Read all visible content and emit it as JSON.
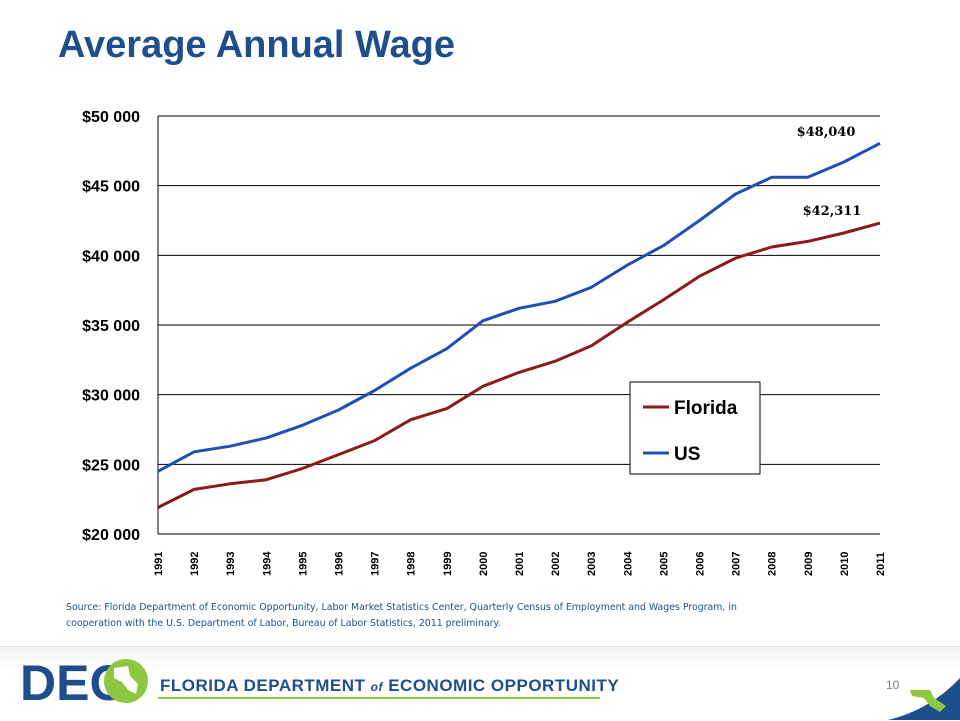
{
  "slide": {
    "title": "Average Annual Wage",
    "source": "Source:  Florida Department of Economic Opportunity,  Labor Market Statistics Center, Quarterly Census of Employment and Wages Program, in cooperation with the U.S. Department of Labor, Bureau of Labor Statistics, 2011 preliminary.",
    "page_number": "10"
  },
  "footer": {
    "logo_text": "DEO",
    "agency_name_before": "FLORIDA DEPARTMENT ",
    "agency_name_of": "of",
    "agency_name_after": " ECONOMIC OPPORTUNITY"
  },
  "colors": {
    "florida": "#8b1a1a",
    "us": "#1f4fb5",
    "title": "#1f4e8c",
    "gridline": "#000000",
    "logo_green": "#8dc63f"
  },
  "chart_data": {
    "type": "line",
    "title": "",
    "xlabel": "",
    "ylabel": "",
    "x": [
      "1991",
      "1992",
      "1993",
      "1994",
      "1995",
      "1996",
      "1997",
      "1998",
      "1999",
      "2000",
      "2001",
      "2002",
      "2003",
      "2004",
      "2005",
      "2006",
      "2007",
      "2008",
      "2009",
      "2010",
      "2011"
    ],
    "ylim": [
      20000,
      50000
    ],
    "yticks": [
      20000,
      25000,
      30000,
      35000,
      40000,
      45000,
      50000
    ],
    "ytick_labels": [
      "$20 000",
      "$25 000",
      "$30 000",
      "$35 000",
      "$40 000",
      "$45 000",
      "$50 000"
    ],
    "grid": true,
    "legend_position": "center-right",
    "series": [
      {
        "name": "Florida",
        "color": "#8b1a1a",
        "values": [
          21900,
          23200,
          23600,
          23900,
          24700,
          25700,
          26700,
          28200,
          29000,
          30600,
          31600,
          32400,
          33500,
          35200,
          36800,
          38500,
          39800,
          40600,
          41000,
          41600,
          42311
        ],
        "end_label": "$42,311"
      },
      {
        "name": "US",
        "color": "#1f4fb5",
        "values": [
          24500,
          25900,
          26300,
          26900,
          27800,
          28900,
          30300,
          31900,
          33300,
          35300,
          36200,
          36700,
          37700,
          39300,
          40700,
          42500,
          44400,
          45600,
          45600,
          46700,
          48040
        ],
        "end_label": "$48,040"
      }
    ]
  }
}
